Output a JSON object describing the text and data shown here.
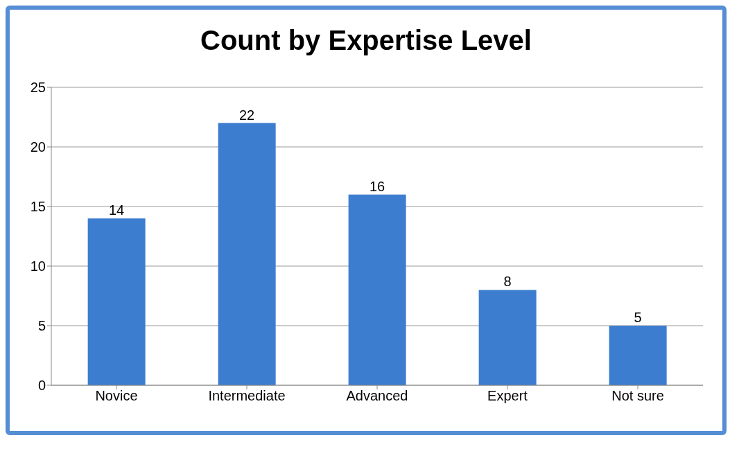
{
  "chart_data": {
    "type": "bar",
    "title": "Count by Expertise Level",
    "categories": [
      "Novice",
      "Intermediate",
      "Advanced",
      "Expert",
      "Not sure"
    ],
    "values": [
      14,
      22,
      16,
      8,
      5
    ],
    "color": "#3c7dd0",
    "ylim": [
      0,
      25
    ],
    "yticks": [
      0,
      5,
      10,
      15,
      20,
      25
    ],
    "grid": "y",
    "data_labels": true
  }
}
